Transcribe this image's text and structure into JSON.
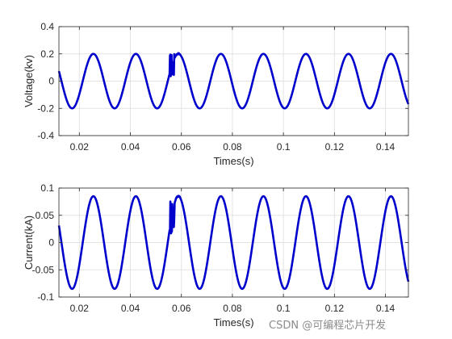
{
  "chart_data": [
    {
      "type": "line",
      "xlabel": "Times(s)",
      "ylabel": "Voltage(kv)",
      "xlim": [
        0.012,
        0.149
      ],
      "ylim": [
        -0.4,
        0.4
      ],
      "xticks": [
        0.02,
        0.04,
        0.06,
        0.08,
        0.1,
        0.12,
        0.14
      ],
      "xtick_labels": [
        "0.02",
        "0.04",
        "0.06",
        "0.08",
        "0.1",
        "0.12",
        "0.14"
      ],
      "yticks": [
        -0.4,
        -0.2,
        0,
        0.2,
        0.4
      ],
      "ytick_labels": [
        "-0.4",
        "-0.2",
        "0",
        "0.2",
        "0.4"
      ],
      "grid": true,
      "series": [
        {
          "color": "#0000cd",
          "waveform": "sine",
          "amplitude": 0.2,
          "frequency_hz": 60,
          "first_peak_time": 0.0255,
          "disturbance": {
            "t_start": 0.0555,
            "t_end": 0.0595,
            "min": -0.01,
            "max": 0.21
          }
        }
      ]
    },
    {
      "type": "line",
      "xlabel": "Times(s)",
      "ylabel": "Current(kA)",
      "xlim": [
        0.012,
        0.149
      ],
      "ylim": [
        -0.1,
        0.1
      ],
      "xticks": [
        0.02,
        0.04,
        0.06,
        0.08,
        0.1,
        0.12,
        0.14
      ],
      "xtick_labels": [
        "0.02",
        "0.04",
        "0.06",
        "0.08",
        "0.1",
        "0.12",
        "0.14"
      ],
      "yticks": [
        -0.1,
        -0.05,
        0,
        0.05,
        0.1
      ],
      "ytick_labels": [
        "-0.1",
        "-0.05",
        "0",
        "0.05",
        "0.1"
      ],
      "grid": true,
      "series": [
        {
          "color": "#0000cd",
          "waveform": "sine",
          "amplitude": 0.085,
          "frequency_hz": 60,
          "first_peak_time": 0.0255,
          "disturbance": {
            "t_start": 0.0555,
            "t_end": 0.0595,
            "min": -0.001,
            "max": 0.088
          }
        }
      ]
    }
  ],
  "watermark": {
    "text": "CSDN @可编程芯片开发"
  }
}
